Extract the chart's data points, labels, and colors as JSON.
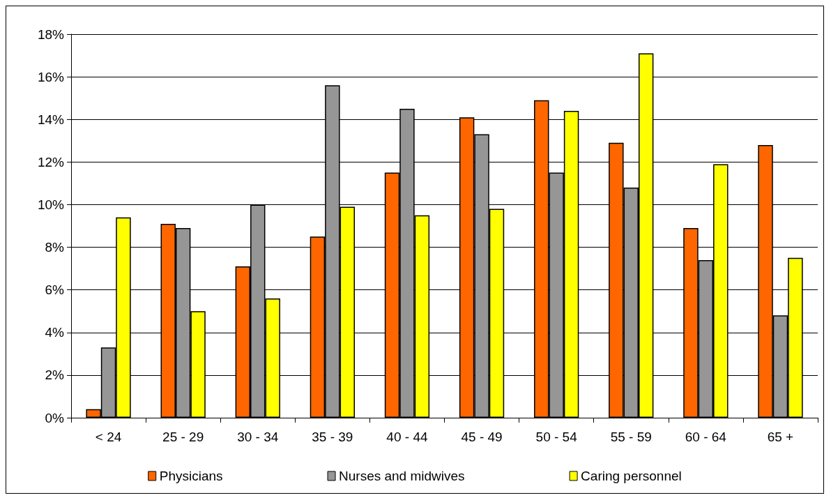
{
  "chart_data": {
    "type": "bar",
    "categories": [
      "< 24",
      "25 - 29",
      "30 - 34",
      "35 - 39",
      "40 - 44",
      "45 - 49",
      "50 - 54",
      "55 - 59",
      "60 - 64",
      "65 +"
    ],
    "series": [
      {
        "name": "Physicians",
        "color": "#ff6600",
        "values": [
          0.4,
          9.1,
          7.1,
          8.5,
          11.5,
          14.1,
          14.9,
          12.9,
          8.9,
          12.8
        ]
      },
      {
        "name": "Nurses and midwives",
        "color": "#969696",
        "values": [
          3.3,
          8.9,
          10.0,
          15.6,
          14.5,
          13.3,
          11.5,
          10.8,
          7.4,
          4.8
        ]
      },
      {
        "name": "Caring personnel",
        "color": "#ffff00",
        "values": [
          9.4,
          5.0,
          5.6,
          9.9,
          9.5,
          9.8,
          14.4,
          17.1,
          11.9,
          7.5
        ]
      }
    ],
    "ylim": [
      0,
      18
    ],
    "yticks": [
      {
        "value": 0,
        "label": "0%"
      },
      {
        "value": 2,
        "label": "2%"
      },
      {
        "value": 4,
        "label": "4%"
      },
      {
        "value": 6,
        "label": "6%"
      },
      {
        "value": 8,
        "label": "8%"
      },
      {
        "value": 10,
        "label": "10%"
      },
      {
        "value": 12,
        "label": "12%"
      },
      {
        "value": 14,
        "label": "14%"
      },
      {
        "value": 16,
        "label": "16%"
      },
      {
        "value": 18,
        "label": "18%"
      }
    ],
    "grid": "y",
    "legend": "bottom"
  }
}
